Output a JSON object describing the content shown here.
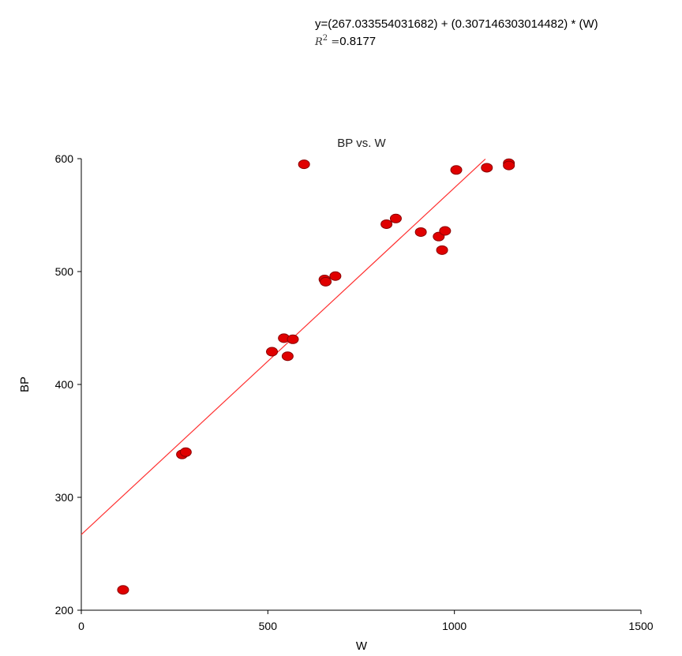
{
  "equation": {
    "line": "y=(267.033554031682) + (0.307146303014482) * (W)",
    "r2_symbol": "R",
    "r2_superscript": "2",
    "r2_equals": "=",
    "r2_value": "0.8177"
  },
  "chart_data": {
    "type": "scatter",
    "title": "BP vs. W",
    "xlabel": "W",
    "ylabel": "BP",
    "xlim": [
      0,
      1500
    ],
    "ylim": [
      200,
      600
    ],
    "xticks": [
      0,
      500,
      1000,
      1500
    ],
    "yticks": [
      200,
      300,
      400,
      500,
      600
    ],
    "xtick_labels": [
      "0",
      "500",
      "1000",
      "1500"
    ],
    "ytick_labels": [
      "200",
      "300",
      "400",
      "500",
      "600"
    ],
    "grid": false,
    "legend": "none",
    "colors": {
      "points": "#e00000",
      "point_edge": "#8b0000",
      "fit_line": "#ff3030",
      "axes": "#000000"
    },
    "fit": {
      "intercept": 267.033554031682,
      "slope": 0.307146303014482,
      "x_range": [
        0,
        1083
      ]
    },
    "points": [
      {
        "x": 112,
        "y": 218
      },
      {
        "x": 270,
        "y": 338
      },
      {
        "x": 280,
        "y": 340
      },
      {
        "x": 511,
        "y": 429
      },
      {
        "x": 543,
        "y": 441
      },
      {
        "x": 553,
        "y": 425
      },
      {
        "x": 567,
        "y": 440
      },
      {
        "x": 597,
        "y": 595
      },
      {
        "x": 652,
        "y": 493
      },
      {
        "x": 655,
        "y": 491
      },
      {
        "x": 681,
        "y": 496
      },
      {
        "x": 818,
        "y": 542
      },
      {
        "x": 843,
        "y": 547
      },
      {
        "x": 910,
        "y": 535
      },
      {
        "x": 958,
        "y": 531
      },
      {
        "x": 967,
        "y": 519
      },
      {
        "x": 975,
        "y": 536
      },
      {
        "x": 1005,
        "y": 590
      },
      {
        "x": 1087,
        "y": 592
      },
      {
        "x": 1146,
        "y": 596
      },
      {
        "x": 1146,
        "y": 594
      }
    ]
  }
}
